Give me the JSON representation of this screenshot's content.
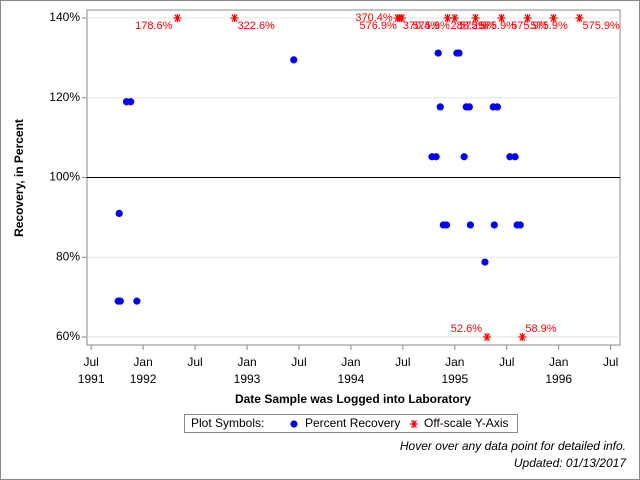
{
  "chart_data": {
    "type": "scatter",
    "xlabel": "Date Sample was Logged into Laboratory",
    "ylabel": "Recovery, in Percent",
    "xlim": [
      1991.46,
      1996.59
    ],
    "ylim": [
      58,
      142
    ],
    "xticks": [
      {
        "value": 1991.5,
        "label": "Jul"
      },
      {
        "value": 1992,
        "label": "Jan"
      },
      {
        "value": 1992.5,
        "label": "Jul"
      },
      {
        "value": 1993,
        "label": "Jan"
      },
      {
        "value": 1993.5,
        "label": "Jul"
      },
      {
        "value": 1994,
        "label": "Jan"
      },
      {
        "value": 1994.5,
        "label": "Jul"
      },
      {
        "value": 1995,
        "label": "Jan"
      },
      {
        "value": 1995.5,
        "label": "Jul"
      },
      {
        "value": 1996,
        "label": "Jan"
      },
      {
        "value": 1996.5,
        "label": "Jul"
      }
    ],
    "xtick_years": [
      {
        "value": 1991.5,
        "label": "1991"
      },
      1992,
      1993,
      1994,
      1995,
      1996
    ],
    "yticks": [
      {
        "value": 60,
        "label": "60%"
      },
      {
        "value": 80,
        "label": "80%"
      },
      {
        "value": 100,
        "label": "100%"
      },
      {
        "value": 120,
        "label": "120%"
      },
      {
        "value": 140,
        "label": "140%"
      }
    ],
    "grid": true,
    "refline": 100,
    "legend_title": "Plot Symbols:",
    "series": [
      {
        "name": "Percent Recovery",
        "color": "#0000ff",
        "x": [
          1991.77,
          1991.76,
          1991.78,
          1991.84,
          1991.88,
          1991.94,
          1993.45,
          1994.78,
          1994.82,
          1994.84,
          1994.86,
          1994.89,
          1994.92,
          1995.02,
          1995.04,
          1995.09,
          1995.11,
          1995.14,
          1995.15,
          1995.29,
          1995.37,
          1995.41,
          1995.38,
          1995.53,
          1995.58,
          1995.6,
          1995.63
        ],
        "values": [
          91,
          69,
          69,
          119,
          119,
          69,
          129.5,
          105.2,
          105.2,
          131.2,
          117.7,
          88.1,
          88.1,
          131.2,
          131.2,
          105.2,
          117.7,
          117.7,
          88.1,
          78.8,
          117.7,
          117.7,
          88.1,
          105.2,
          105.2,
          88.1,
          88.1
        ]
      },
      {
        "name": "Off-scale Y-Axis",
        "color": "#ff0000",
        "x": [
          1992.33,
          1992.88,
          1994.45,
          1994.47,
          1994.49,
          1994.93,
          1995.0,
          1995.2,
          1995.45,
          1995.7,
          1995.95,
          1996.2,
          1995.31,
          1995.65
        ],
        "values": [
          178.6,
          322.6,
          370.4,
          370.4,
          576.9,
          288.2,
          575.9,
          575.9,
          575.9,
          575.9,
          575.9,
          575.9,
          52.6,
          58.9
        ],
        "value_labels": [
          "178.6%",
          "322.6%",
          "370.4%",
          "370.4%",
          "576.9%",
          "288.2%",
          "575.9%",
          "575.9%",
          "575.9%",
          "575.9%",
          "575.9%",
          "575.9%",
          "52.6%",
          "58.9%"
        ]
      }
    ],
    "notes": [
      "Hover over any data point for detailed info.",
      "Updated: 01/13/2017"
    ]
  }
}
